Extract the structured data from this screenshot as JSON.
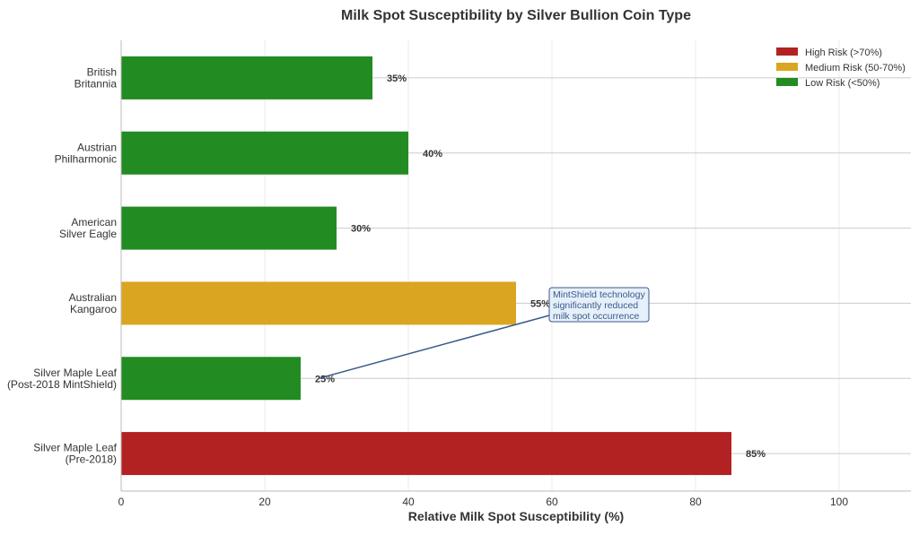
{
  "chart_data": {
    "type": "bar",
    "orientation": "horizontal",
    "title": "Milk Spot Susceptibility by Silver Bullion Coin Type",
    "xlabel": "Relative Milk Spot Susceptibility (%)",
    "ylabel": "",
    "xlim": [
      0,
      110
    ],
    "xticks": [
      0,
      20,
      40,
      60,
      80,
      100
    ],
    "grid": true,
    "categories": [
      [
        "Silver Maple Leaf",
        "(Pre-2018)"
      ],
      [
        "Silver Maple Leaf",
        "(Post-2018 MintShield)"
      ],
      [
        "Australian",
        "Kangaroo"
      ],
      [
        "American",
        "Silver Eagle"
      ],
      [
        "Austrian",
        "Philharmonic"
      ],
      [
        "British",
        "Britannia"
      ]
    ],
    "values": [
      85,
      25,
      55,
      30,
      40,
      35
    ],
    "value_labels": [
      "85%",
      "25%",
      "55%",
      "30%",
      "40%",
      "35%"
    ],
    "risk": [
      "high",
      "low",
      "medium",
      "low",
      "low",
      "low"
    ],
    "colors": {
      "high": "#b22222",
      "medium": "#daa520",
      "low": "#228b22"
    },
    "legend": {
      "placement": "top-right",
      "entries": [
        {
          "label": "High Risk (>70%)",
          "risk": "high"
        },
        {
          "label": "Medium Risk (50-70%)",
          "risk": "medium"
        },
        {
          "label": "Low Risk (<50%)",
          "risk": "low"
        }
      ]
    },
    "annotation": {
      "lines": [
        "MintShield technology",
        "significantly reduced",
        "milk spot occurrence"
      ],
      "target_category_index": 1,
      "target_value": 25,
      "text_at_value": 60
    }
  }
}
